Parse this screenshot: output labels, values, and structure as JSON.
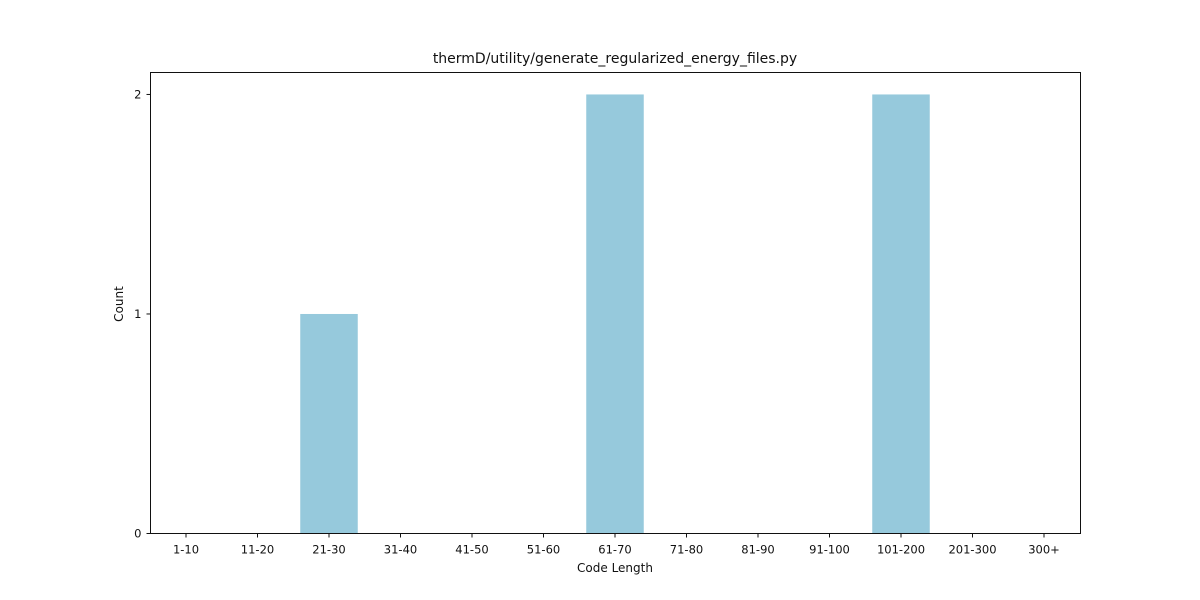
{
  "chart_data": {
    "type": "bar",
    "title": "thermD/utility/generate_regularized_energy_files.py",
    "xlabel": "Code Length",
    "ylabel": "Count",
    "categories": [
      "1-10",
      "11-20",
      "21-30",
      "31-40",
      "41-50",
      "51-60",
      "61-70",
      "71-80",
      "81-90",
      "91-100",
      "101-200",
      "201-300",
      "300+"
    ],
    "values": [
      0,
      0,
      1,
      0,
      0,
      0,
      2,
      0,
      0,
      0,
      2,
      0,
      0
    ],
    "ylim": [
      0,
      2.1
    ],
    "yticks": [
      0,
      1,
      2
    ],
    "bar_color": "#96c9dc",
    "grid": false,
    "legend": "none"
  }
}
